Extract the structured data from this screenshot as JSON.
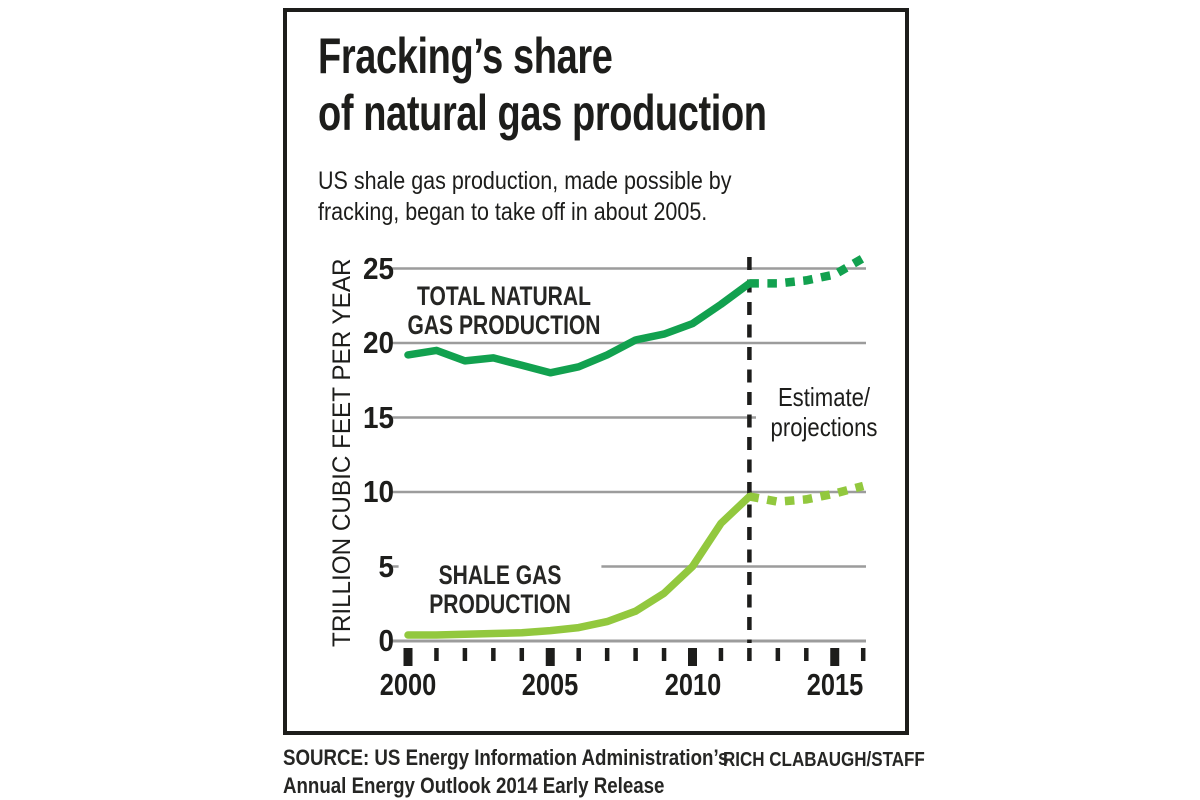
{
  "title": {
    "line1": "Fracking’s share",
    "line2": "of natural gas production"
  },
  "subtitle": {
    "line1": "US shale gas production, made possible by",
    "line2": "fracking, began to take off in about 2005."
  },
  "labels": {
    "total_series": {
      "line1": "TOTAL NATURAL",
      "line2": "GAS PRODUCTION"
    },
    "shale_series": {
      "line1": "SHALE GAS",
      "line2": "PRODUCTION"
    },
    "estimate": {
      "line1": "Estimate/",
      "line2": "projections"
    }
  },
  "source": {
    "line1": "SOURCE: US Energy Information Administration’s",
    "line2": "Annual Energy Outlook 2014 Early Release"
  },
  "credit": "RICH CLABAUGH/STAFF",
  "colors": {
    "total_line": "#12a14f",
    "shale_line": "#92c83e",
    "grid": "#9c9c9c",
    "ink": "#1d1d1b"
  },
  "chart_data": {
    "type": "line",
    "title": "Fracking’s share of natural gas production",
    "subtitle": "US shale gas production, made possible by fracking, began to take off in about 2005.",
    "xlabel": "",
    "ylabel": "TRILLION CUBIC FEET PER YEAR",
    "xlim": [
      2000,
      2016
    ],
    "ylim": [
      0,
      26
    ],
    "yticks": [
      0,
      5,
      10,
      15,
      20,
      25
    ],
    "xticks_major": [
      2000,
      2005,
      2010,
      2015
    ],
    "grid": "horizontal",
    "legend_position": "inline-labels",
    "divider_year": 2012,
    "divider_label": "Estimate/projections",
    "series": [
      {
        "name": "TOTAL NATURAL GAS PRODUCTION",
        "color": "#12a14f",
        "x": [
          2000,
          2001,
          2002,
          2003,
          2004,
          2005,
          2006,
          2007,
          2008,
          2009,
          2010,
          2011,
          2012
        ],
        "values": [
          19.2,
          19.5,
          18.8,
          19.0,
          18.5,
          18.0,
          18.4,
          19.2,
          20.2,
          20.6,
          21.3,
          22.6,
          24.0
        ],
        "projection_x": [
          2012,
          2013,
          2014,
          2015,
          2016
        ],
        "projection_values": [
          24.0,
          24.0,
          24.2,
          24.6,
          25.7
        ]
      },
      {
        "name": "SHALE GAS PRODUCTION",
        "color": "#92c83e",
        "x": [
          2000,
          2001,
          2002,
          2003,
          2004,
          2005,
          2006,
          2007,
          2008,
          2009,
          2010,
          2011,
          2012
        ],
        "values": [
          0.4,
          0.4,
          0.45,
          0.5,
          0.55,
          0.7,
          0.9,
          1.3,
          2.0,
          3.2,
          5.0,
          7.9,
          9.7
        ],
        "projection_x": [
          2012,
          2013,
          2014,
          2015,
          2016
        ],
        "projection_values": [
          9.7,
          9.35,
          9.5,
          9.9,
          10.4
        ]
      }
    ]
  }
}
